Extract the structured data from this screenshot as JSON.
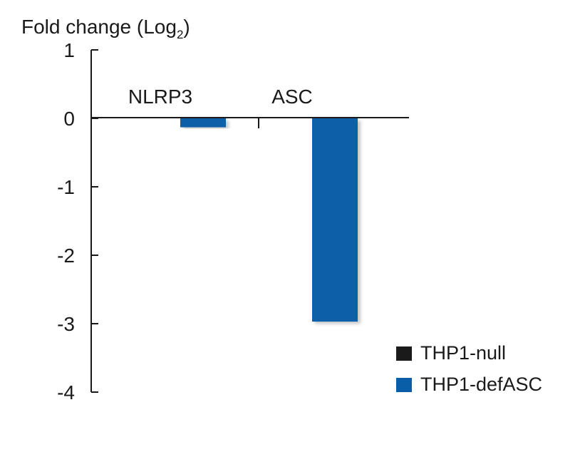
{
  "chart_data": {
    "type": "bar",
    "ylabel_main": "Fold change (Log",
    "ylabel_sub": "2",
    "ylabel_close": ")",
    "categories": [
      "NLRP3",
      "ASC"
    ],
    "series": [
      {
        "name": "THP1-null",
        "color": "#1a1a1a",
        "values": [
          0,
          0
        ]
      },
      {
        "name": "THP1-defASC",
        "color": "#0a5ea8",
        "values": [
          -0.13,
          -2.97
        ]
      }
    ],
    "ylim": [
      -4,
      1
    ],
    "yticks": [
      "1",
      "0",
      "-1",
      "-2",
      "-3",
      "-4"
    ],
    "legend_position": "bottom-right"
  }
}
